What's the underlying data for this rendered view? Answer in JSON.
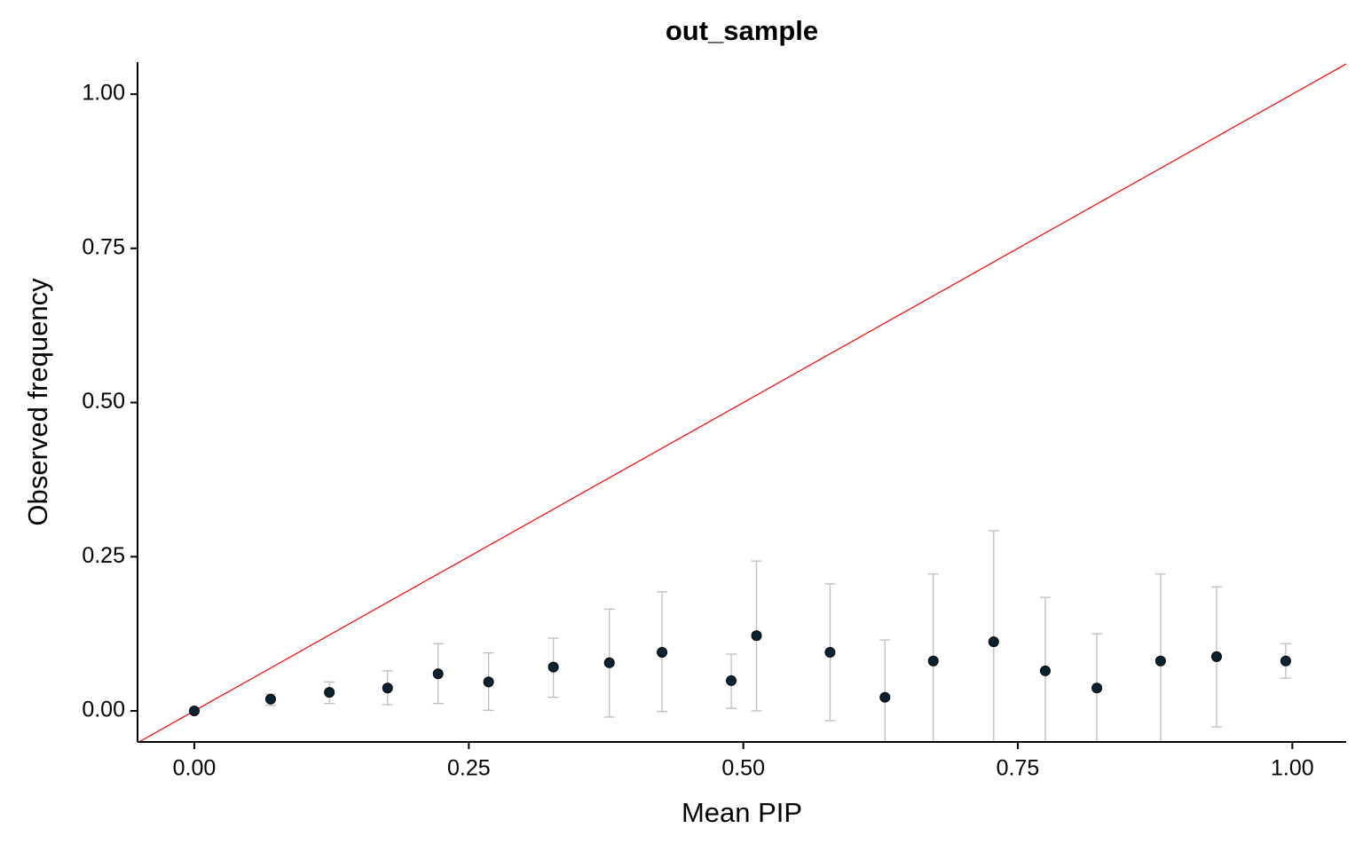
{
  "chart_data": {
    "type": "scatter",
    "title": "out_sample",
    "x_label": "Mean PIP",
    "y_label": "Observed frequency",
    "xlim": [
      -0.0517,
      1.049
    ],
    "ylim": [
      -0.0504,
      1.052
    ],
    "xticks": [
      {
        "value": 0,
        "label": "0.00"
      },
      {
        "value": 0.25,
        "label": "0.25"
      },
      {
        "value": 0.5,
        "label": "0.50"
      },
      {
        "value": 0.75,
        "label": "0.75"
      },
      {
        "value": 1,
        "label": "1.00"
      }
    ],
    "yticks": [
      {
        "value": 0,
        "label": "0.00"
      },
      {
        "value": 0.25,
        "label": "0.25"
      },
      {
        "value": 0.5,
        "label": "0.50"
      },
      {
        "value": 0.75,
        "label": "0.75"
      },
      {
        "value": 1,
        "label": "1.00"
      }
    ],
    "grid": false,
    "reference_line": {
      "slope": 1,
      "intercept": 0,
      "color": "#ff0000"
    },
    "error_color": "#bdbdbd",
    "series": [
      {
        "color": "#0b2230",
        "x": [
          0.0,
          0.0695,
          0.123,
          0.176,
          0.222,
          0.268,
          0.327,
          0.378,
          0.426,
          0.489,
          0.512,
          0.579,
          0.629,
          0.673,
          0.728,
          0.775,
          0.822,
          0.88,
          0.931,
          0.994
        ],
        "values": [
          0.0,
          0.019,
          0.03,
          0.037,
          0.06,
          0.047,
          0.071,
          0.078,
          0.095,
          0.049,
          0.122,
          0.095,
          0.022,
          0.081,
          0.112,
          0.065,
          0.037,
          0.081,
          0.088,
          0.081
        ],
        "lower": [
          0.0,
          0.009,
          0.012,
          0.01,
          0.012,
          0.001,
          0.022,
          -0.01,
          -0.001,
          0.004,
          0.0,
          -0.016,
          -0.071,
          -0.06,
          -0.068,
          -0.054,
          -0.051,
          -0.06,
          -0.026,
          0.053
        ],
        "upper": [
          0.0,
          0.027,
          0.047,
          0.065,
          0.109,
          0.094,
          0.118,
          0.165,
          0.193,
          0.092,
          0.243,
          0.206,
          0.115,
          0.222,
          0.292,
          0.184,
          0.125,
          0.222,
          0.201,
          0.109
        ]
      }
    ]
  }
}
